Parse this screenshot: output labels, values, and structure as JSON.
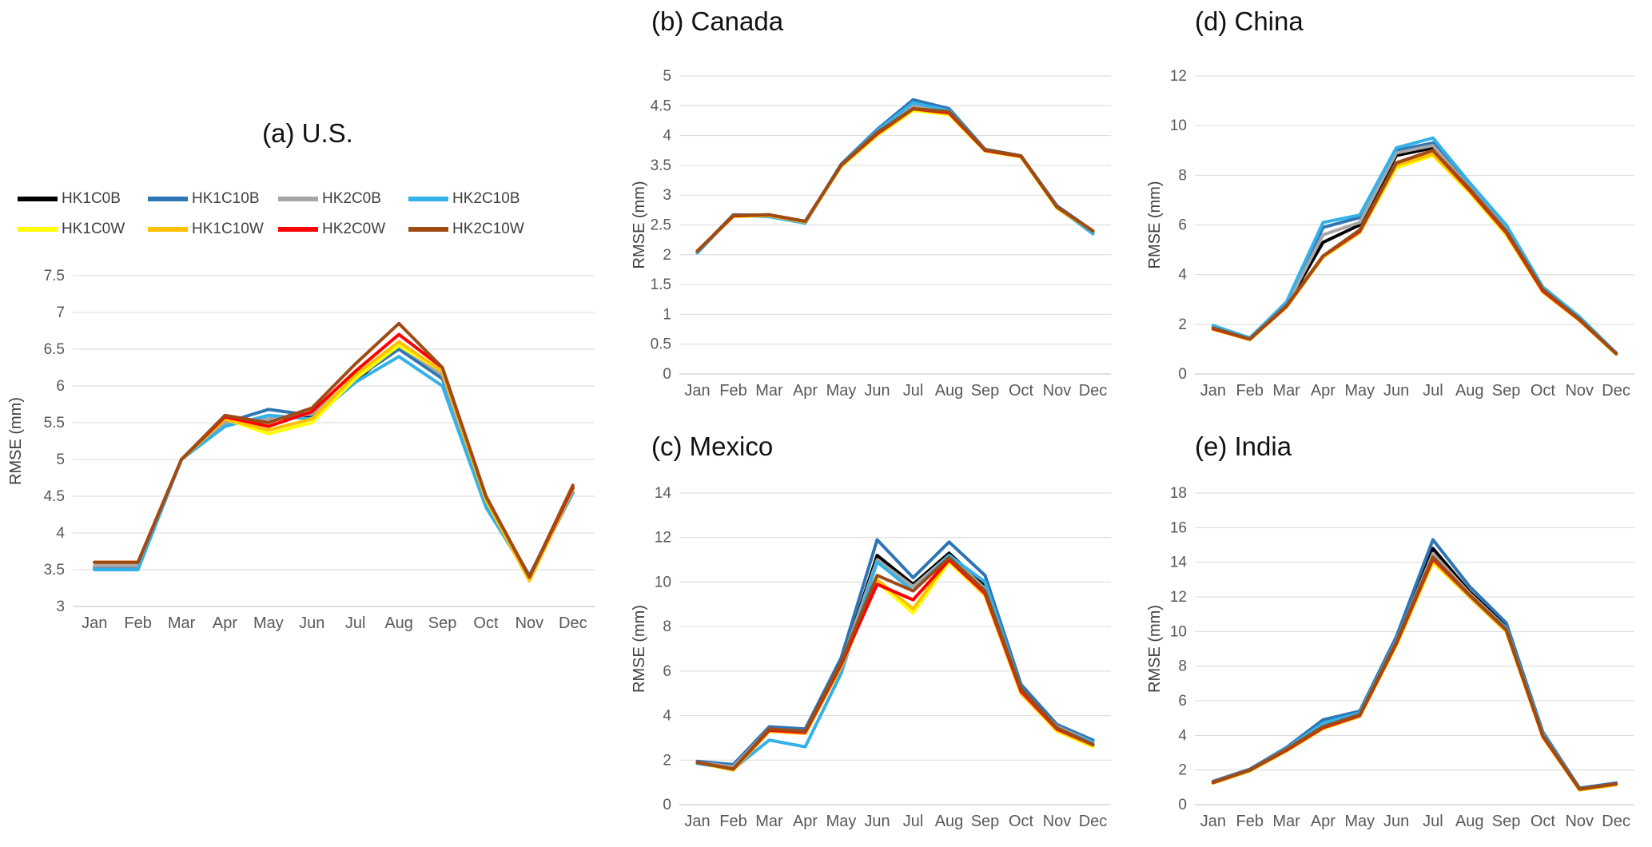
{
  "legend": {
    "items": [
      {
        "label": "HK1C0B",
        "color": "#000000"
      },
      {
        "label": "HK1C10B",
        "color": "#2E75B6"
      },
      {
        "label": "HK2C0B",
        "color": "#A6A6A6"
      },
      {
        "label": "HK2C10B",
        "color": "#33B1E8"
      },
      {
        "label": "HK1C0W",
        "color": "#FFFF00"
      },
      {
        "label": "HK1C10W",
        "color": "#FFC000"
      },
      {
        "label": "HK2C0W",
        "color": "#FF0000"
      },
      {
        "label": "HK2C10W",
        "color": "#9E4B15"
      }
    ]
  },
  "chart_data": [
    {
      "id": "us",
      "type": "line",
      "title": "(a) U.S.",
      "ylabel": "RMSE (mm)",
      "categories": [
        "Jan",
        "Feb",
        "Mar",
        "Apr",
        "May",
        "Jun",
        "Jul",
        "Aug",
        "Sep",
        "Oct",
        "Nov",
        "Dec"
      ],
      "ylim": [
        3,
        7.5
      ],
      "ystep": 0.5,
      "grid": true,
      "series": [
        {
          "name": "HK1C0B",
          "values": [
            3.55,
            3.55,
            5.0,
            5.5,
            5.55,
            5.6,
            6.05,
            6.6,
            6.15,
            4.4,
            3.4,
            4.55
          ]
        },
        {
          "name": "HK1C10B",
          "values": [
            3.52,
            3.52,
            5.0,
            5.5,
            5.68,
            5.6,
            6.1,
            6.5,
            6.1,
            4.45,
            3.42,
            4.6
          ]
        },
        {
          "name": "HK2C0B",
          "values": [
            3.55,
            3.55,
            5.0,
            5.5,
            5.55,
            5.62,
            6.1,
            6.55,
            6.15,
            4.4,
            3.38,
            4.6
          ]
        },
        {
          "name": "HK2C10B",
          "values": [
            3.5,
            3.5,
            5.0,
            5.45,
            5.6,
            5.55,
            6.05,
            6.4,
            6.0,
            4.35,
            3.4,
            4.55
          ]
        },
        {
          "name": "HK1C0W",
          "values": [
            3.6,
            3.6,
            5.0,
            5.55,
            5.35,
            5.5,
            6.1,
            6.55,
            6.2,
            4.45,
            3.35,
            4.6
          ]
        },
        {
          "name": "HK1C10W",
          "values": [
            3.6,
            3.6,
            5.0,
            5.55,
            5.4,
            5.55,
            6.15,
            6.6,
            6.2,
            4.45,
            3.35,
            4.6
          ]
        },
        {
          "name": "HK2C0W",
          "values": [
            3.6,
            3.6,
            5.0,
            5.58,
            5.45,
            5.65,
            6.2,
            6.7,
            6.25,
            4.5,
            3.4,
            4.62
          ]
        },
        {
          "name": "HK2C10W",
          "values": [
            3.6,
            3.6,
            5.0,
            5.6,
            5.5,
            5.7,
            6.3,
            6.85,
            6.25,
            4.5,
            3.4,
            4.65
          ]
        }
      ]
    },
    {
      "id": "canada",
      "type": "line",
      "title": "(b) Canada",
      "ylabel": "RMSE (mm)",
      "categories": [
        "Jan",
        "Feb",
        "Mar",
        "Apr",
        "May",
        "Jun",
        "Jul",
        "Aug",
        "Sep",
        "Oct",
        "Nov",
        "Dec"
      ],
      "ylim": [
        0,
        5
      ],
      "ystep": 0.5,
      "grid": true,
      "series": [
        {
          "name": "HK1C0B",
          "values": [
            2.05,
            2.65,
            2.65,
            2.55,
            3.5,
            4.05,
            4.5,
            4.4,
            3.75,
            3.65,
            2.8,
            2.38
          ]
        },
        {
          "name": "HK1C10B",
          "values": [
            2.05,
            2.67,
            2.66,
            2.55,
            3.52,
            4.1,
            4.6,
            4.45,
            3.77,
            3.66,
            2.82,
            2.4
          ]
        },
        {
          "name": "HK2C0B",
          "values": [
            2.05,
            2.65,
            2.65,
            2.54,
            3.5,
            4.05,
            4.5,
            4.4,
            3.75,
            3.65,
            2.78,
            2.37
          ]
        },
        {
          "name": "HK2C10B",
          "values": [
            2.03,
            2.66,
            2.64,
            2.53,
            3.5,
            4.08,
            4.55,
            4.42,
            3.76,
            3.65,
            2.8,
            2.35
          ]
        },
        {
          "name": "HK1C0W",
          "values": [
            2.06,
            2.64,
            2.66,
            2.55,
            3.48,
            4.0,
            4.42,
            4.35,
            3.74,
            3.64,
            2.78,
            2.4
          ]
        },
        {
          "name": "HK1C10W",
          "values": [
            2.06,
            2.65,
            2.66,
            2.55,
            3.49,
            4.02,
            4.44,
            4.37,
            3.75,
            3.65,
            2.79,
            2.4
          ]
        },
        {
          "name": "HK2C0W",
          "values": [
            2.06,
            2.65,
            2.67,
            2.56,
            3.5,
            4.03,
            4.45,
            4.38,
            3.75,
            3.65,
            2.8,
            2.4
          ]
        },
        {
          "name": "HK2C10W",
          "values": [
            2.06,
            2.66,
            2.67,
            2.56,
            3.5,
            4.05,
            4.45,
            4.4,
            3.76,
            3.66,
            2.8,
            2.4
          ]
        }
      ]
    },
    {
      "id": "mexico",
      "type": "line",
      "title": "(c) Mexico",
      "ylabel": "RMSE (mm)",
      "categories": [
        "Jan",
        "Feb",
        "Mar",
        "Apr",
        "May",
        "Jun",
        "Jul",
        "Aug",
        "Sep",
        "Oct",
        "Nov",
        "Dec"
      ],
      "ylim": [
        0,
        14
      ],
      "ystep": 2,
      "grid": true,
      "series": [
        {
          "name": "HK1C0B",
          "values": [
            1.9,
            1.7,
            3.4,
            3.3,
            6.3,
            11.2,
            9.9,
            11.3,
            9.8,
            5.2,
            3.5,
            2.8
          ]
        },
        {
          "name": "HK1C10B",
          "values": [
            1.95,
            1.8,
            3.5,
            3.4,
            6.6,
            11.9,
            10.2,
            11.8,
            10.3,
            5.4,
            3.6,
            2.9
          ]
        },
        {
          "name": "HK2C0B",
          "values": [
            1.9,
            1.7,
            3.4,
            3.3,
            6.3,
            11.0,
            9.8,
            11.2,
            9.7,
            5.1,
            3.5,
            2.8
          ]
        },
        {
          "name": "HK2C10B",
          "values": [
            1.85,
            1.6,
            2.9,
            2.6,
            5.9,
            10.9,
            9.6,
            11.2,
            10.0,
            5.2,
            3.4,
            2.8
          ]
        },
        {
          "name": "HK1C0W",
          "values": [
            1.9,
            1.55,
            3.3,
            3.2,
            6.2,
            10.0,
            8.6,
            10.9,
            9.4,
            5.0,
            3.3,
            2.6
          ]
        },
        {
          "name": "HK1C10W",
          "values": [
            1.9,
            1.55,
            3.3,
            3.2,
            6.2,
            10.1,
            8.8,
            11.0,
            9.4,
            5.0,
            3.35,
            2.65
          ]
        },
        {
          "name": "HK2C0W",
          "values": [
            1.9,
            1.6,
            3.35,
            3.25,
            6.3,
            9.9,
            9.2,
            11.0,
            9.5,
            5.1,
            3.4,
            2.7
          ]
        },
        {
          "name": "HK2C10W",
          "values": [
            1.9,
            1.6,
            3.4,
            3.3,
            6.4,
            10.3,
            9.6,
            11.1,
            9.6,
            5.2,
            3.45,
            2.7
          ]
        }
      ]
    },
    {
      "id": "china",
      "type": "line",
      "title": "(d) China",
      "ylabel": "RMSE (mm)",
      "categories": [
        "Jan",
        "Feb",
        "Mar",
        "Apr",
        "May",
        "Jun",
        "Jul",
        "Aug",
        "Sep",
        "Oct",
        "Nov",
        "Dec"
      ],
      "ylim": [
        0,
        12
      ],
      "ystep": 2,
      "grid": true,
      "series": [
        {
          "name": "HK1C0B",
          "values": [
            1.85,
            1.4,
            2.75,
            5.3,
            6.0,
            8.8,
            9.1,
            7.5,
            5.8,
            3.4,
            2.2,
            0.85
          ]
        },
        {
          "name": "HK1C10B",
          "values": [
            1.9,
            1.45,
            2.85,
            5.9,
            6.3,
            9.0,
            9.3,
            7.6,
            5.9,
            3.45,
            2.25,
            0.85
          ]
        },
        {
          "name": "HK2C0B",
          "values": [
            1.85,
            1.4,
            2.75,
            5.6,
            6.1,
            8.9,
            9.2,
            7.5,
            5.8,
            3.4,
            2.2,
            0.85
          ]
        },
        {
          "name": "HK2C10B",
          "values": [
            1.95,
            1.45,
            2.9,
            6.1,
            6.4,
            9.1,
            9.5,
            7.7,
            6.0,
            3.5,
            2.3,
            0.85
          ]
        },
        {
          "name": "HK1C0W",
          "values": [
            1.8,
            1.38,
            2.7,
            4.7,
            5.7,
            8.3,
            8.8,
            7.3,
            5.6,
            3.3,
            2.15,
            0.8
          ]
        },
        {
          "name": "HK1C10W",
          "values": [
            1.8,
            1.38,
            2.7,
            4.7,
            5.7,
            8.4,
            8.85,
            7.35,
            5.65,
            3.3,
            2.15,
            0.8
          ]
        },
        {
          "name": "HK2C0W",
          "values": [
            1.82,
            1.4,
            2.72,
            4.75,
            5.75,
            8.5,
            9.0,
            7.4,
            5.7,
            3.35,
            2.18,
            0.82
          ]
        },
        {
          "name": "HK2C10W",
          "values": [
            1.85,
            1.4,
            2.75,
            4.75,
            5.8,
            8.5,
            9.0,
            7.45,
            5.75,
            3.4,
            2.2,
            0.82
          ]
        }
      ]
    },
    {
      "id": "india",
      "type": "line",
      "title": "(e) India",
      "ylabel": "RMSE (mm)",
      "categories": [
        "Jan",
        "Feb",
        "Mar",
        "Apr",
        "May",
        "Jun",
        "Jul",
        "Aug",
        "Sep",
        "Oct",
        "Nov",
        "Dec"
      ],
      "ylim": [
        0,
        18
      ],
      "ystep": 2,
      "grid": true,
      "series": [
        {
          "name": "HK1C0B",
          "values": [
            1.3,
            2.0,
            3.2,
            4.5,
            5.2,
            9.4,
            14.8,
            12.3,
            10.3,
            4.0,
            0.9,
            1.2
          ]
        },
        {
          "name": "HK1C10B",
          "values": [
            1.35,
            2.05,
            3.3,
            4.9,
            5.4,
            9.7,
            15.3,
            12.6,
            10.5,
            4.2,
            0.95,
            1.25
          ]
        },
        {
          "name": "HK2C0B",
          "values": [
            1.3,
            2.0,
            3.2,
            4.5,
            5.2,
            9.4,
            14.5,
            12.2,
            10.2,
            4.0,
            0.9,
            1.2
          ]
        },
        {
          "name": "HK2C10B",
          "values": [
            1.3,
            2.0,
            3.25,
            4.7,
            5.3,
            9.5,
            14.2,
            12.0,
            10.2,
            4.1,
            0.9,
            1.2
          ]
        },
        {
          "name": "HK1C0W",
          "values": [
            1.25,
            1.95,
            3.1,
            4.4,
            5.1,
            9.2,
            14.0,
            12.0,
            10.0,
            3.9,
            0.85,
            1.15
          ]
        },
        {
          "name": "HK1C10W",
          "values": [
            1.25,
            1.95,
            3.1,
            4.4,
            5.1,
            9.3,
            14.1,
            12.0,
            10.0,
            3.9,
            0.85,
            1.15
          ]
        },
        {
          "name": "HK2C0W",
          "values": [
            1.28,
            2.0,
            3.15,
            4.45,
            5.15,
            9.3,
            14.2,
            12.1,
            10.1,
            3.95,
            0.9,
            1.2
          ]
        },
        {
          "name": "HK2C10W",
          "values": [
            1.3,
            2.0,
            3.2,
            4.5,
            5.2,
            9.4,
            14.3,
            12.1,
            10.1,
            4.0,
            0.9,
            1.2
          ]
        }
      ]
    }
  ]
}
